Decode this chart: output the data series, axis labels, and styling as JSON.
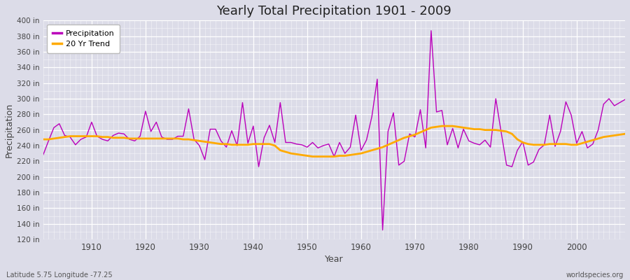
{
  "title": "Yearly Total Precipitation 1901 - 2009",
  "xlabel": "Year",
  "ylabel": "Precipitation",
  "subtitle_left": "Latitude 5.75 Longitude -77.25",
  "subtitle_right": "worldspecies.org",
  "legend_labels": [
    "Precipitation",
    "20 Yr Trend"
  ],
  "precip_color": "#bb00bb",
  "trend_color": "#ffaa00",
  "bg_color": "#dcdce8",
  "ylim": [
    120,
    400
  ],
  "yticks": [
    120,
    140,
    160,
    180,
    200,
    220,
    240,
    260,
    280,
    300,
    320,
    340,
    360,
    380,
    400
  ],
  "xlim": [
    1901,
    2009
  ],
  "xticks": [
    1910,
    1920,
    1930,
    1940,
    1950,
    1960,
    1970,
    1980,
    1990,
    2000
  ],
  "years": [
    1901,
    1902,
    1903,
    1904,
    1905,
    1906,
    1907,
    1908,
    1909,
    1910,
    1911,
    1912,
    1913,
    1914,
    1915,
    1916,
    1917,
    1918,
    1919,
    1920,
    1921,
    1922,
    1923,
    1924,
    1925,
    1926,
    1927,
    1928,
    1929,
    1930,
    1931,
    1932,
    1933,
    1934,
    1935,
    1936,
    1937,
    1938,
    1939,
    1940,
    1941,
    1942,
    1943,
    1944,
    1945,
    1946,
    1947,
    1948,
    1949,
    1950,
    1951,
    1952,
    1953,
    1954,
    1955,
    1956,
    1957,
    1958,
    1959,
    1960,
    1961,
    1962,
    1963,
    1964,
    1965,
    1966,
    1967,
    1968,
    1969,
    1970,
    1971,
    1972,
    1973,
    1974,
    1975,
    1976,
    1977,
    1978,
    1979,
    1980,
    1981,
    1982,
    1983,
    1984,
    1985,
    1986,
    1987,
    1988,
    1989,
    1990,
    1991,
    1992,
    1993,
    1994,
    1995,
    1996,
    1997,
    1998,
    1999,
    2000,
    2001,
    2002,
    2003,
    2004,
    2005,
    2006,
    2007,
    2008,
    2009
  ],
  "precip": [
    228,
    246,
    263,
    268,
    253,
    251,
    241,
    248,
    251,
    270,
    252,
    248,
    246,
    253,
    256,
    255,
    248,
    246,
    252,
    284,
    258,
    270,
    251,
    248,
    248,
    252,
    252,
    287,
    248,
    240,
    222,
    261,
    261,
    246,
    238,
    259,
    240,
    295,
    243,
    265,
    213,
    250,
    266,
    244,
    295,
    244,
    244,
    242,
    241,
    238,
    244,
    237,
    240,
    242,
    226,
    244,
    230,
    238,
    279,
    234,
    247,
    277,
    325,
    132,
    258,
    282,
    215,
    220,
    255,
    251,
    286,
    237,
    387,
    283,
    285,
    241,
    262,
    237,
    261,
    246,
    243,
    241,
    247,
    238,
    300,
    257,
    215,
    213,
    234,
    245,
    215,
    219,
    235,
    241,
    279,
    239,
    258,
    296,
    279,
    243,
    258,
    237,
    242,
    260,
    293,
    300,
    291,
    295,
    299
  ],
  "trend": [
    248,
    248,
    249,
    250,
    251,
    252,
    252,
    252,
    252,
    252,
    252,
    251,
    251,
    250,
    250,
    250,
    249,
    249,
    249,
    249,
    249,
    249,
    249,
    249,
    249,
    249,
    248,
    248,
    247,
    246,
    245,
    244,
    243,
    242,
    242,
    241,
    241,
    241,
    241,
    242,
    242,
    242,
    242,
    240,
    234,
    232,
    230,
    229,
    228,
    227,
    226,
    226,
    226,
    226,
    226,
    227,
    227,
    228,
    229,
    230,
    232,
    234,
    236,
    238,
    241,
    244,
    247,
    250,
    252,
    254,
    257,
    260,
    263,
    264,
    265,
    265,
    265,
    264,
    263,
    262,
    261,
    261,
    260,
    260,
    260,
    259,
    258,
    255,
    248,
    244,
    242,
    241,
    241,
    241,
    242,
    242,
    242,
    242,
    241,
    241,
    243,
    245,
    247,
    249,
    251,
    252,
    253,
    254,
    255
  ]
}
